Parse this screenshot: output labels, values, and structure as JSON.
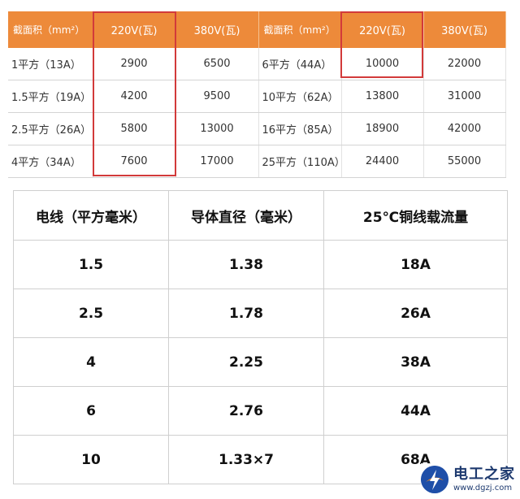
{
  "top_table": {
    "headers": [
      "截面积（mm²）",
      "220V(瓦)",
      "380V(瓦)",
      "截面积（mm²）",
      "220V(瓦)",
      "380V(瓦)"
    ],
    "rows": [
      [
        "1平方（13A）",
        "2900",
        "6500",
        "6平方（44A）",
        "10000",
        "22000"
      ],
      [
        "1.5平方（19A）",
        "4200",
        "9500",
        "10平方（62A）",
        "13800",
        "31000"
      ],
      [
        "2.5平方（26A）",
        "5800",
        "13000",
        "16平方（85A）",
        "18900",
        "42000"
      ],
      [
        "4平方（34A）",
        "7600",
        "17000",
        "25平方（110A）",
        "24400",
        "55000"
      ]
    ],
    "accent_color": "#ed8a3a",
    "highlight_color": "#d23a3a"
  },
  "bottom_table": {
    "headers": [
      "电线（平方毫米）",
      "导体直径（毫米）",
      "25℃铜线载流量"
    ],
    "rows": [
      [
        "1.5",
        "1.38",
        "18A"
      ],
      [
        "2.5",
        "1.78",
        "26A"
      ],
      [
        "4",
        "2.25",
        "38A"
      ],
      [
        "6",
        "2.76",
        "44A"
      ],
      [
        "10",
        "1.33×7",
        "68A"
      ]
    ]
  },
  "watermark": {
    "title": "电工之家",
    "url": "www.dgzj.com",
    "logo_icon": "lightning-bolt-icon"
  }
}
